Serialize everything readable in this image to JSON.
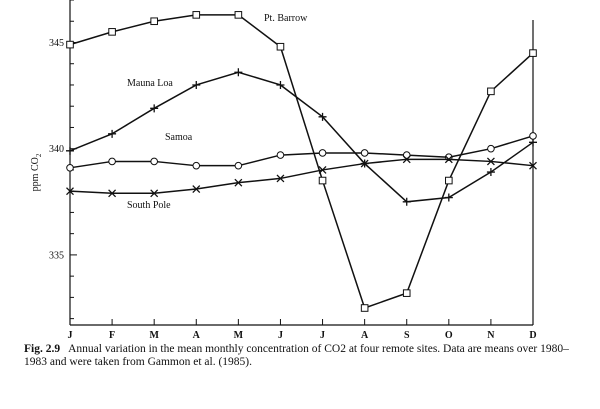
{
  "chart_data": {
    "type": "line",
    "title": "",
    "xlabel": "",
    "ylabel": "ppm CO2",
    "categories": [
      "J",
      "F",
      "M",
      "A",
      "M",
      "J",
      "J",
      "A",
      "S",
      "O",
      "N",
      "D"
    ],
    "yticks": [
      335,
      340,
      345
    ],
    "ylim": [
      331.7,
      347
    ],
    "grid": false,
    "legend": "inline labels",
    "series": [
      {
        "name": "Pt. Barrow",
        "marker": "square",
        "values": [
          344.9,
          345.5,
          346.0,
          346.3,
          346.3,
          344.8,
          338.5,
          332.5,
          333.2,
          338.5,
          342.7,
          344.5
        ]
      },
      {
        "name": "Mauna Loa",
        "marker": "plus",
        "values": [
          339.9,
          340.7,
          341.9,
          343.0,
          343.6,
          343.0,
          341.5,
          339.3,
          337.5,
          337.7,
          338.9,
          340.3
        ]
      },
      {
        "name": "Samoa",
        "marker": "circle",
        "values": [
          339.1,
          339.4,
          339.4,
          339.2,
          339.2,
          339.7,
          339.8,
          339.8,
          339.7,
          339.6,
          340.0,
          340.6
        ]
      },
      {
        "name": "South Pole",
        "marker": "x",
        "values": [
          338.0,
          337.9,
          337.9,
          338.1,
          338.4,
          338.6,
          339.0,
          339.3,
          339.5,
          339.5,
          339.4,
          339.2
        ]
      }
    ]
  },
  "caption": {
    "label": "Fig. 2.9",
    "text": "Annual variation in the mean monthly concentration of CO2 at four remote sites. Data are means over 1980–1983 and were taken from Gammon et al. (1985)."
  }
}
